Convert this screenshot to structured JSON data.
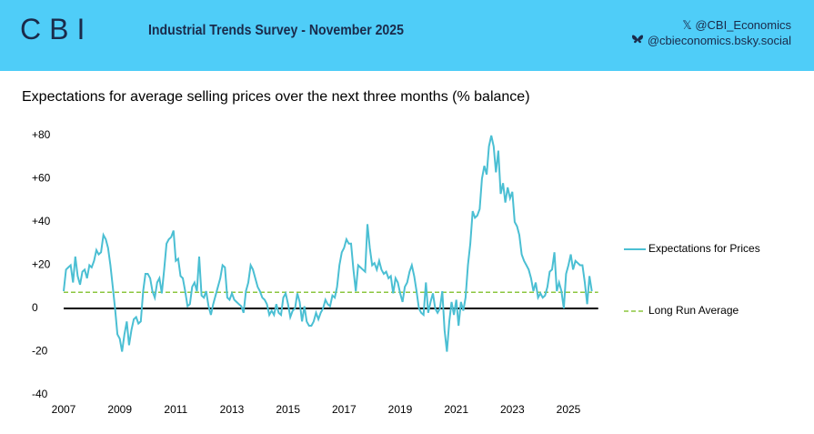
{
  "header": {
    "logo": "CBI",
    "title": "Industrial Trends Survey - November 2025",
    "x_handle": "@CBI_Economics",
    "bsky_handle": "@cbieconomics.bsky.social"
  },
  "chart_data": {
    "type": "line",
    "title": "Expectations for average selling prices over the next three months (% balance)",
    "categories": [
      "2007",
      null,
      null,
      null,
      null,
      null,
      null,
      null,
      null,
      null,
      null,
      null,
      null,
      null,
      null,
      null,
      null,
      null,
      null,
      null,
      null,
      null,
      null,
      null,
      "2009",
      null,
      null,
      null,
      null,
      null,
      null,
      null,
      null,
      null,
      null,
      null,
      null,
      null,
      null,
      null,
      null,
      null,
      null,
      null,
      null,
      null,
      null,
      null,
      "2011",
      null,
      null,
      null,
      null,
      null,
      null,
      null,
      null,
      null,
      null,
      null,
      null,
      null,
      null,
      null,
      null,
      null,
      null,
      null,
      null,
      null,
      null,
      null,
      "2013",
      null,
      null,
      null,
      null,
      null,
      null,
      null,
      null,
      null,
      null,
      null,
      null,
      null,
      null,
      null,
      null,
      null,
      null,
      null,
      null,
      null,
      null,
      null,
      "2015",
      null,
      null,
      null,
      null,
      null,
      null,
      null,
      null,
      null,
      null,
      null,
      null,
      null,
      null,
      null,
      null,
      null,
      null,
      null,
      null,
      null,
      null,
      null,
      "2017",
      null,
      null,
      null,
      null,
      null,
      null,
      null,
      null,
      null,
      null,
      null,
      null,
      null,
      null,
      null,
      null,
      null,
      null,
      null,
      null,
      null,
      null,
      null,
      "2019",
      null,
      null,
      null,
      null,
      null,
      null,
      null,
      null,
      null,
      null,
      null,
      null,
      null,
      null,
      null,
      null,
      null,
      null,
      null,
      null,
      null,
      null,
      null,
      "2021",
      null,
      null,
      null,
      null,
      null,
      null,
      null,
      null,
      null,
      null,
      null,
      null,
      null,
      null,
      null,
      null,
      null,
      null,
      null,
      null,
      null,
      null,
      null,
      "2023",
      null,
      null,
      null,
      null,
      null,
      null,
      null,
      null,
      null,
      null,
      null,
      null,
      null,
      null,
      null,
      null,
      null,
      null,
      null,
      null,
      null,
      null,
      null,
      "2025",
      null,
      null,
      null,
      null,
      null,
      null,
      null,
      null,
      null,
      null
    ],
    "series": [
      {
        "name": "Expectations for Prices",
        "color": "#4bbfd3",
        "values": [
          8,
          18,
          19,
          20,
          12,
          24,
          15,
          11,
          17,
          18,
          14,
          20,
          19,
          22,
          27,
          25,
          26,
          34,
          32,
          28,
          20,
          10,
          0,
          -12,
          -14,
          -20,
          -12,
          -6,
          -17,
          -10,
          -5,
          -4,
          -7,
          -6,
          8,
          16,
          16,
          14,
          8,
          5,
          12,
          14,
          7,
          18,
          30,
          32,
          33,
          36,
          22,
          23,
          15,
          14,
          8,
          1,
          2,
          10,
          12,
          8,
          24,
          6,
          5,
          8,
          1,
          -3,
          2,
          6,
          10,
          14,
          20,
          19,
          5,
          4,
          7,
          4,
          3,
          2,
          1,
          -2,
          8,
          12,
          20,
          18,
          14,
          10,
          8,
          5,
          4,
          2,
          -3,
          -1,
          -3,
          2,
          -2,
          -3,
          5,
          7,
          2,
          -4,
          -1,
          0,
          7,
          3,
          -6,
          1,
          -6,
          -8,
          -8,
          -6,
          -2,
          -5,
          -2,
          0,
          4,
          2,
          1,
          6,
          5,
          10,
          20,
          26,
          28,
          32,
          30,
          30,
          18,
          8,
          20,
          19,
          18,
          17,
          39,
          28,
          20,
          21,
          18,
          22,
          18,
          16,
          17,
          14,
          15,
          7,
          14,
          12,
          7,
          3,
          10,
          12,
          17,
          20,
          15,
          8,
          0,
          -2,
          -3,
          12,
          -2,
          3,
          7,
          0,
          -2,
          0,
          8,
          -10,
          -20,
          -6,
          3,
          -3,
          4,
          -8,
          3,
          -1,
          5,
          20,
          30,
          45,
          42,
          43,
          46,
          60,
          66,
          62,
          75,
          80,
          75,
          63,
          73,
          53,
          58,
          49,
          56,
          51,
          54,
          40,
          38,
          34,
          25,
          22,
          20,
          18,
          14,
          8,
          12,
          5,
          7,
          5,
          6,
          10,
          17,
          18,
          26,
          8,
          12,
          8,
          0,
          16,
          20,
          25,
          18,
          22,
          21,
          20,
          20,
          12,
          2,
          15,
          8
        ]
      }
    ],
    "reference_line": {
      "name": "Long Run Average",
      "value": 7.5,
      "color": "#8cc63f"
    },
    "ylim": [
      -40,
      80
    ],
    "yticks": [
      {
        "value": 80,
        "label": "+80"
      },
      {
        "value": 60,
        "label": "+60"
      },
      {
        "value": 40,
        "label": "+40"
      },
      {
        "value": 20,
        "label": "+20"
      },
      0,
      -20,
      -40
    ],
    "legend": "right"
  }
}
